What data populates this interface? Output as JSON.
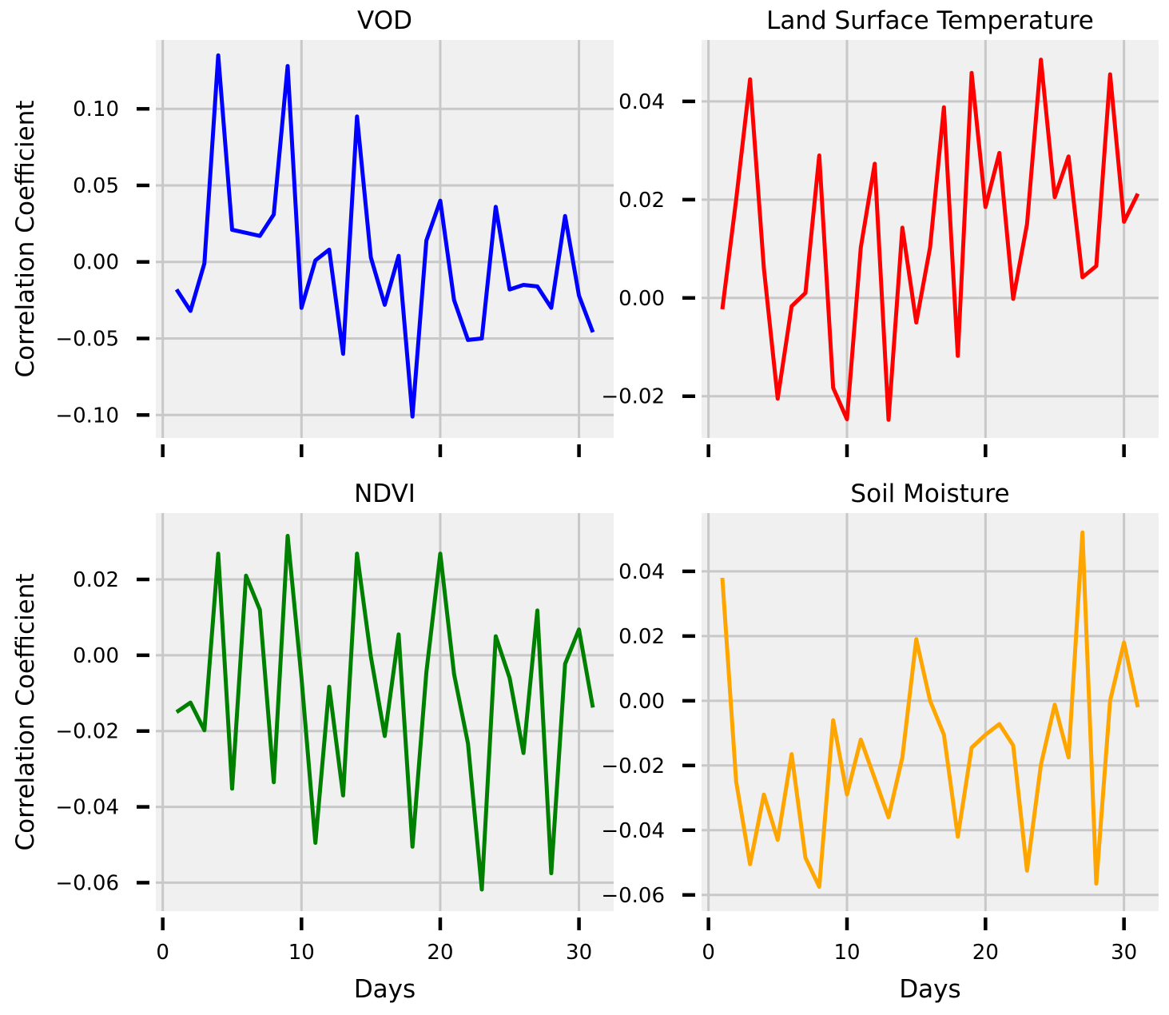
{
  "chart_data": [
    {
      "type": "line",
      "title": "VOD",
      "xlabel": "",
      "ylabel": "Correlation Coefficient",
      "color": "#0000ff",
      "xlim": [
        -0.5,
        32.5
      ],
      "ylim": [
        -0.115,
        0.145
      ],
      "xticks": [
        0,
        10,
        20,
        30
      ],
      "xtick_labels": [],
      "yticks": [
        -0.1,
        -0.05,
        0.0,
        0.05,
        0.1
      ],
      "ytick_labels": [
        "−0.10",
        "−0.05",
        "0.00",
        "0.05",
        "0.10"
      ],
      "grid": true,
      "x": [
        1,
        2,
        3,
        4,
        5,
        6,
        7,
        8,
        9,
        10,
        11,
        12,
        13,
        14,
        15,
        16,
        17,
        18,
        19,
        20,
        21,
        22,
        23,
        24,
        25,
        26,
        27,
        28,
        29,
        30,
        31
      ],
      "values": [
        -0.018,
        -0.032,
        -0.001,
        0.135,
        0.021,
        0.019,
        0.017,
        0.031,
        0.128,
        -0.03,
        0.001,
        0.008,
        -0.06,
        0.095,
        0.003,
        -0.028,
        0.004,
        -0.101,
        0.014,
        0.04,
        -0.025,
        -0.051,
        -0.05,
        0.036,
        -0.018,
        -0.015,
        -0.016,
        -0.03,
        0.03,
        -0.022,
        -0.046
      ]
    },
    {
      "type": "line",
      "title": "Land Surface Temperature",
      "xlabel": "",
      "ylabel": "",
      "color": "#ff0000",
      "xlim": [
        -0.5,
        32.5
      ],
      "ylim": [
        -0.0285,
        0.0525
      ],
      "xticks": [
        0,
        10,
        20,
        30
      ],
      "xtick_labels": [],
      "yticks": [
        -0.02,
        0.0,
        0.02,
        0.04
      ],
      "ytick_labels": [
        "−0.02",
        "0.00",
        "0.02",
        "0.04"
      ],
      "grid": true,
      "x": [
        1,
        2,
        3,
        4,
        5,
        6,
        7,
        8,
        9,
        10,
        11,
        12,
        13,
        14,
        15,
        16,
        17,
        18,
        19,
        20,
        21,
        22,
        23,
        24,
        25,
        26,
        27,
        28,
        29,
        30,
        31
      ],
      "values": [
        -0.0023,
        0.02,
        0.0445,
        0.006,
        -0.0205,
        -0.0017,
        0.001,
        0.029,
        -0.0183,
        -0.0247,
        0.0103,
        0.0273,
        -0.0248,
        0.0143,
        -0.005,
        0.0103,
        0.0388,
        -0.0118,
        0.0458,
        0.0185,
        0.0295,
        -0.0002,
        0.015,
        0.0485,
        0.0205,
        0.0288,
        0.0042,
        0.0065,
        0.0455,
        0.0155,
        0.0212
      ]
    },
    {
      "type": "line",
      "title": "NDVI",
      "xlabel": "Days",
      "ylabel": "Correlation Coefficient",
      "color": "#008000",
      "xlim": [
        -0.5,
        32.5
      ],
      "ylim": [
        -0.0675,
        0.0375
      ],
      "xticks": [
        0,
        10,
        20,
        30
      ],
      "xtick_labels": [
        "0",
        "10",
        "20",
        "30"
      ],
      "yticks": [
        -0.06,
        -0.04,
        -0.02,
        0.0,
        0.02
      ],
      "ytick_labels": [
        "−0.06",
        "−0.04",
        "−0.02",
        "0.00",
        "0.02"
      ],
      "grid": true,
      "x": [
        1,
        2,
        3,
        4,
        5,
        6,
        7,
        8,
        9,
        10,
        11,
        12,
        13,
        14,
        15,
        16,
        17,
        18,
        19,
        20,
        21,
        22,
        23,
        24,
        25,
        26,
        27,
        28,
        29,
        30,
        31
      ],
      "values": [
        -0.015,
        -0.0125,
        -0.0198,
        0.0268,
        -0.0352,
        0.021,
        0.012,
        -0.0335,
        0.0315,
        -0.006,
        -0.0495,
        -0.0083,
        -0.037,
        0.0268,
        -0.0003,
        -0.0213,
        0.0055,
        -0.0505,
        -0.0045,
        0.0268,
        -0.005,
        -0.0233,
        -0.0618,
        0.005,
        -0.006,
        -0.0258,
        0.0118,
        -0.0575,
        -0.0023,
        0.0068,
        -0.0138
      ]
    },
    {
      "type": "line",
      "title": "Soil Moisture",
      "xlabel": "Days",
      "ylabel": "",
      "color": "#ffa500",
      "xlim": [
        -0.5,
        32.5
      ],
      "ylim": [
        -0.065,
        0.058
      ],
      "xticks": [
        0,
        10,
        20,
        30
      ],
      "xtick_labels": [
        "0",
        "10",
        "20",
        "30"
      ],
      "yticks": [
        -0.06,
        -0.04,
        -0.02,
        0.0,
        0.02,
        0.04
      ],
      "ytick_labels": [
        "−0.06",
        "−0.04",
        "−0.02",
        "0.00",
        "0.02",
        "0.04"
      ],
      "grid": true,
      "x": [
        1,
        2,
        3,
        4,
        5,
        6,
        7,
        8,
        9,
        10,
        11,
        12,
        13,
        14,
        15,
        16,
        17,
        18,
        19,
        20,
        21,
        22,
        23,
        24,
        25,
        26,
        27,
        28,
        29,
        30,
        31
      ],
      "values": [
        0.038,
        -0.025,
        -0.0505,
        -0.029,
        -0.043,
        -0.0165,
        -0.0485,
        -0.0575,
        -0.006,
        -0.029,
        -0.012,
        -0.024,
        -0.036,
        -0.0175,
        0.019,
        0.0,
        -0.0105,
        -0.042,
        -0.0145,
        -0.0105,
        -0.0072,
        -0.0138,
        -0.0525,
        -0.0198,
        -0.0012,
        -0.0175,
        0.052,
        -0.0565,
        0.0,
        0.018,
        -0.002
      ]
    }
  ]
}
